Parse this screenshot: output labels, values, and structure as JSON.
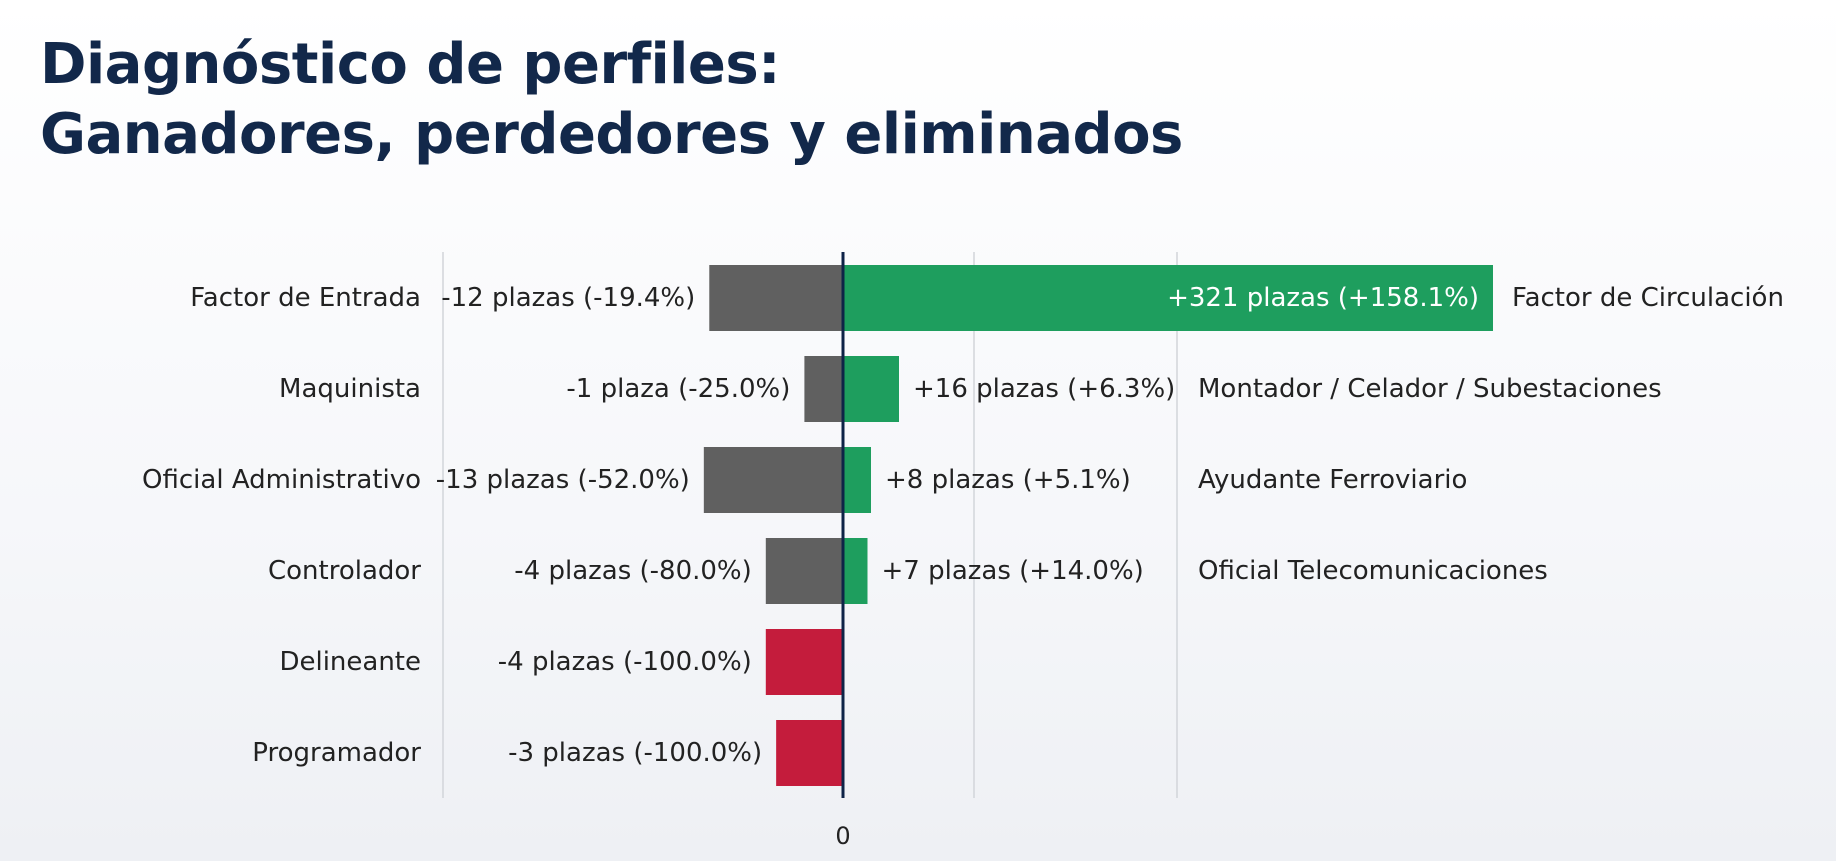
{
  "title_lines": [
    "Diagnóstico de perfiles:",
    "Ganadores, perdedores y eliminados"
  ],
  "colors": {
    "title": "#12284a",
    "gain": "#1e9e5e",
    "loss": "#606060",
    "eliminated": "#c41c3c",
    "axis": "#0e2347",
    "grid": "#d2d5da"
  },
  "chart_data": {
    "type": "bar",
    "orientation": "horizontal-diverging",
    "title": "Diagnóstico de perfiles: Ganadores, perdedores y eliminados",
    "zero_tick_label": "0",
    "rows": [
      {
        "loss": {
          "category": "Factor de Entrada",
          "value": -12,
          "label": "-12 plazas (-19.4%)",
          "eliminated": false
        },
        "gain": {
          "category": "Factor de Circulación",
          "value": 321,
          "label": "+321 plazas (+158.1%)"
        }
      },
      {
        "loss": {
          "category": "Maquinista",
          "value": -1,
          "label": "-1 plaza (-25.0%)",
          "eliminated": false
        },
        "gain": {
          "category": "Montador / Celador / Subestaciones",
          "value": 16,
          "label": "+16 plazas (+6.3%)"
        }
      },
      {
        "loss": {
          "category": "Oficial Administrativo",
          "value": -13,
          "label": "-13 plazas (-52.0%)",
          "eliminated": false
        },
        "gain": {
          "category": "Ayudante Ferroviario",
          "value": 8,
          "label": "+8 plazas (+5.1%)"
        }
      },
      {
        "loss": {
          "category": "Controlador",
          "value": -4,
          "label": "-4 plazas (-80.0%)",
          "eliminated": false
        },
        "gain": {
          "category": "Oficial Telecomunicaciones",
          "value": 7,
          "label": "+7 plazas (+14.0%)"
        }
      },
      {
        "loss": {
          "category": "Delineante",
          "value": -4,
          "label": "-4 plazas (-100.0%)",
          "eliminated": true
        },
        "gain": null
      },
      {
        "loss": {
          "category": "Programador",
          "value": -3,
          "label": "-3 plazas (-100.0%)",
          "eliminated": true
        },
        "gain": null
      }
    ]
  }
}
